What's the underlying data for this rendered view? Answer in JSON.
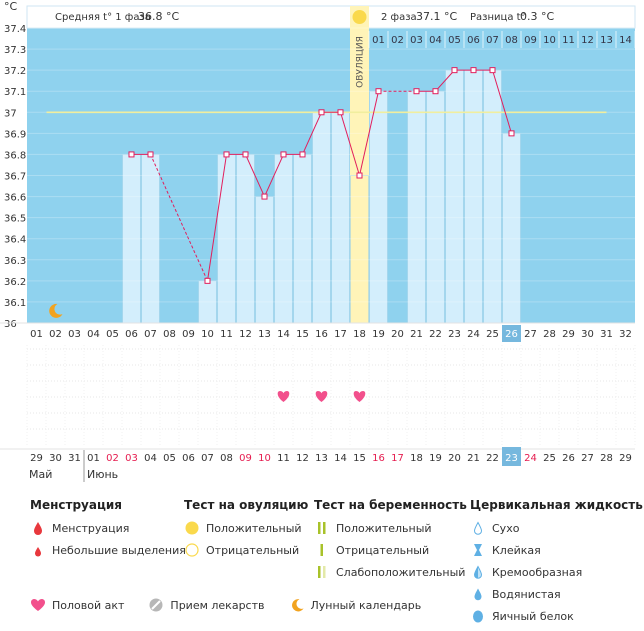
{
  "chart_data": {
    "type": "line",
    "y_unit_label": "°C",
    "ylim": [
      36.0,
      37.4
    ],
    "y_ticks": [
      "36",
      "36.1",
      "36.2",
      "36.3",
      "36.4",
      "36.5",
      "36.6",
      "36.7",
      "36.8",
      "36.9",
      "37",
      "37.1",
      "37.2",
      "37.3",
      "37.4"
    ],
    "header": {
      "phase1_label": "Средняя t° 1 фаза",
      "phase1_value": "36.8 °C",
      "phase2_label": "2 фаза",
      "phase2_value": "37.1 °C",
      "diff_label": "Разница t°",
      "diff_value": "0.3 °C"
    },
    "ovulation_label": "ОВУЛЯЦИЯ",
    "phase2_day_numbers": [
      "01",
      "02",
      "03",
      "04",
      "05",
      "06",
      "07",
      "08",
      "09",
      "10",
      "11",
      "12",
      "13",
      "14"
    ],
    "cycle_days": [
      "01",
      "02",
      "03",
      "04",
      "05",
      "06",
      "07",
      "08",
      "09",
      "10",
      "11",
      "12",
      "13",
      "14",
      "15",
      "16",
      "17",
      "18",
      "19",
      "20",
      "21",
      "22",
      "23",
      "24",
      "25",
      "26",
      "27",
      "28",
      "29",
      "30",
      "31",
      "32"
    ],
    "current_day_index": 25,
    "ovulation_day_index": 17,
    "coverline": 37.0,
    "temperatures": [
      null,
      null,
      null,
      null,
      null,
      36.8,
      36.8,
      null,
      null,
      36.2,
      36.8,
      36.8,
      36.6,
      36.8,
      36.8,
      37.0,
      37.0,
      36.7,
      37.1,
      null,
      37.1,
      37.1,
      37.2,
      37.2,
      37.2,
      36.9,
      null,
      null,
      null,
      null,
      null,
      null
    ],
    "dashed_gaps": [
      [
        6,
        9
      ],
      [
        18,
        20
      ]
    ],
    "moon_day_index": 1,
    "intercourse_day_indices": [
      13,
      15,
      17
    ],
    "calendar_dates": [
      "29",
      "30",
      "31",
      "01",
      "02",
      "03",
      "04",
      "05",
      "06",
      "07",
      "08",
      "09",
      "10",
      "11",
      "12",
      "13",
      "14",
      "15",
      "16",
      "17",
      "18",
      "19",
      "20",
      "21",
      "22",
      "23",
      "24",
      "25",
      "26",
      "27",
      "28",
      "29"
    ],
    "red_date_indices": [
      4,
      5,
      11,
      12,
      18,
      19,
      26
    ],
    "month_labels": [
      "Май",
      "Июнь"
    ]
  },
  "colors": {
    "plot_bg": "#8fd2ee",
    "bar_fill": "#d3eefc",
    "bar_stroke": "#9bcfe8",
    "line": "#e21e5c",
    "coverline": "#f1ee9e",
    "ovulation_band": "#fff4b8",
    "ovulation_circle": "#fad94c",
    "today_badge": "#76b8de",
    "heart": "#f2508c",
    "moon": "#f2a31f",
    "red_date": "#e51c4f"
  },
  "legend": {
    "menstruation": {
      "title": "Менструация",
      "items": [
        "Менструация",
        "Небольшие выделения"
      ]
    },
    "ovulation_test": {
      "title": "Тест на овуляцию",
      "items": [
        "Положительный",
        "Отрицательный"
      ]
    },
    "pregnancy_test": {
      "title": "Тест на беременность",
      "items": [
        "Положительный",
        "Отрицательный",
        "Слабоположительный"
      ]
    },
    "cervical_fluid": {
      "title": "Цервикальная жидкость",
      "items": [
        "Сухо",
        "Клейкая",
        "Кремообразная",
        "Водянистая",
        "Яичный белок"
      ]
    },
    "bottom": [
      "Половой акт",
      "Прием лекарств",
      "Лунный календарь"
    ]
  }
}
